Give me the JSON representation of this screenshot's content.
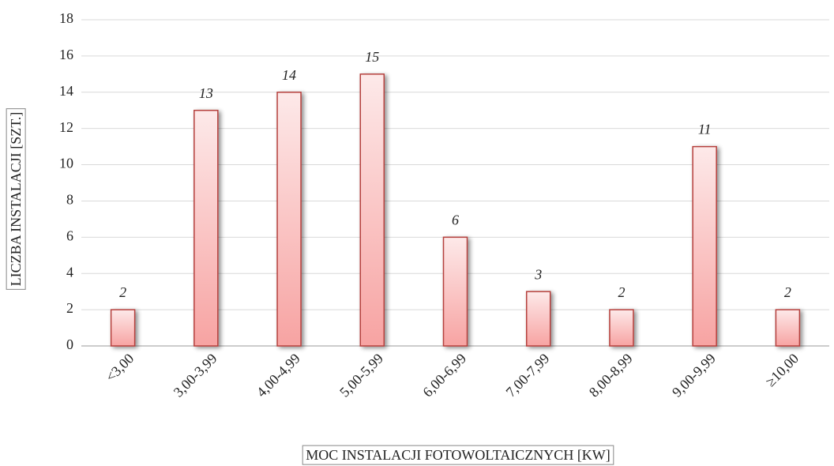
{
  "chart_data": {
    "type": "bar",
    "x_label": "MOC INSTALACJI FOTOWOLTAICZNYCH [KW]",
    "y_label": "LICZBA INSTALACJI [SZT.]",
    "categories": [
      "<3,00",
      "3,00-3,99",
      "4,00-4,99",
      "5,00-5,99",
      "6,00-6,99",
      "7,00-7,99",
      "8,00-8,99",
      "9,00-9,99",
      "≥10,00"
    ],
    "values": [
      2,
      13,
      14,
      15,
      6,
      3,
      2,
      11,
      2
    ],
    "color": "#b5403d",
    "ylim": [
      0,
      18
    ],
    "yticks": [
      0,
      2,
      4,
      6,
      8,
      10,
      12,
      14,
      16,
      18
    ],
    "grid": true
  }
}
